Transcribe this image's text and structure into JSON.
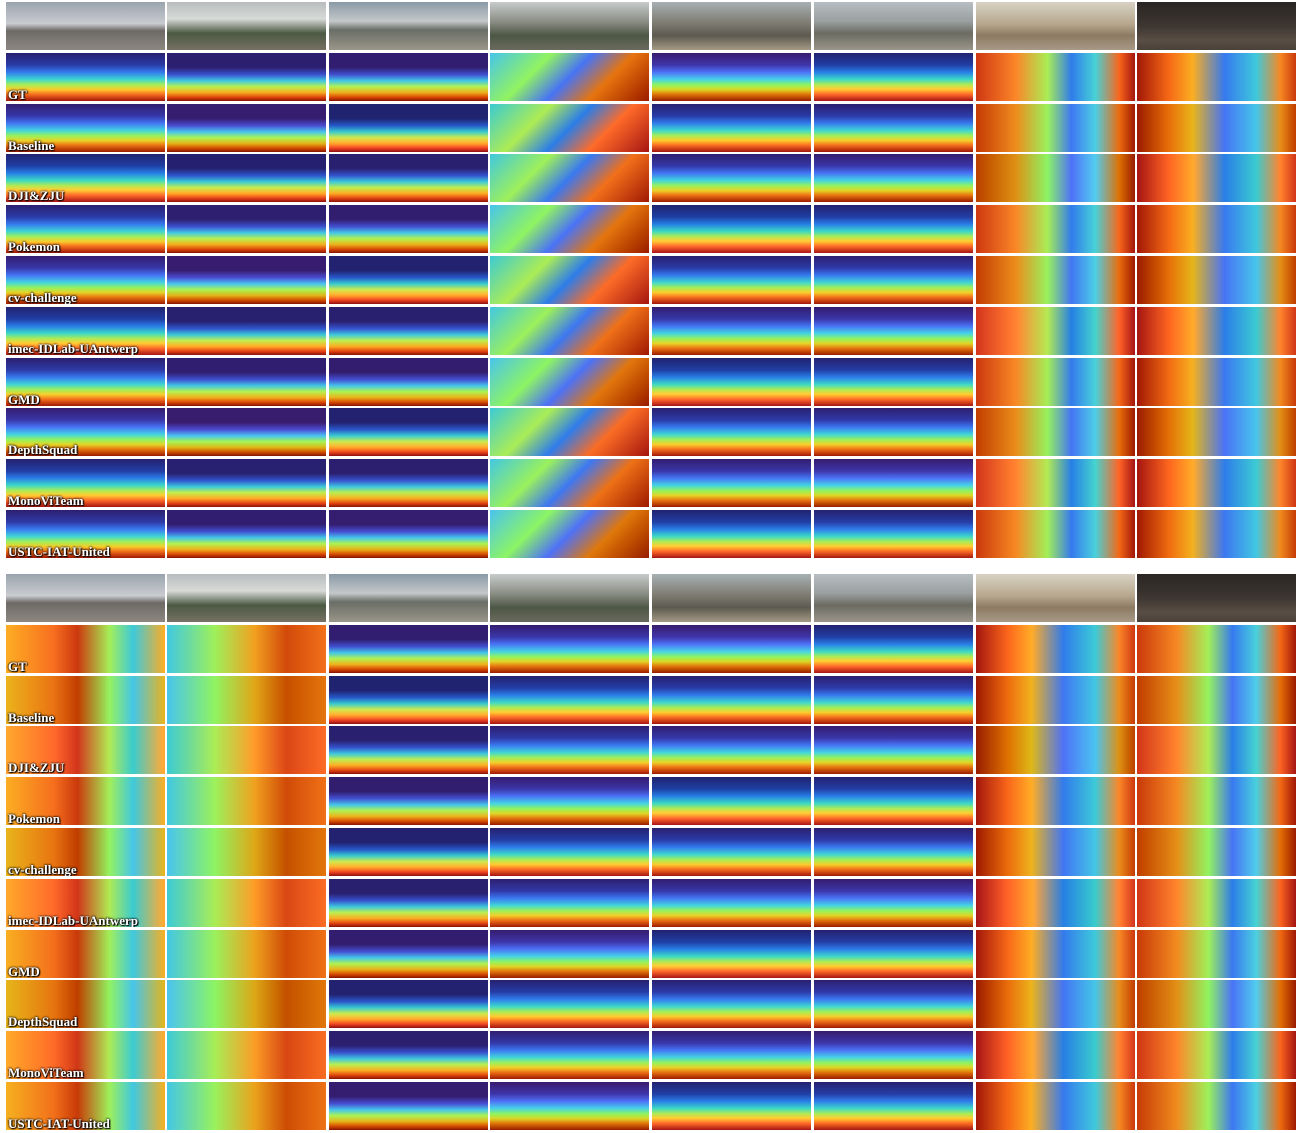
{
  "blocks": [
    {
      "rows": [
        "GT",
        "Baseline",
        "DJI&ZJU",
        "Pokemon",
        "cv-challenge",
        "imec-IDLab-UAntwerp",
        "GMD",
        "DepthSquad",
        "MonoViTeam",
        "USTC-IAT-United"
      ]
    },
    {
      "rows": [
        "GT",
        "Baseline",
        "DJI&ZJU",
        "Pokemon",
        "cv-challenge",
        "imec-IDLab-UAntwerp",
        "GMD",
        "DepthSquad",
        "MonoViTeam",
        "USTC-IAT-United"
      ]
    }
  ]
}
